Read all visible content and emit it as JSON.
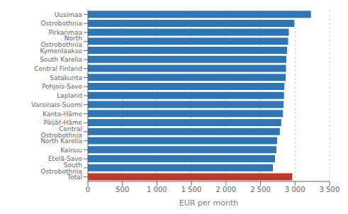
{
  "chart_data": {
    "type": "bar",
    "orientation": "horizontal",
    "categories": [
      "Uusimaa",
      "Ostrobothnia",
      "Pirkanmaa",
      "North Ostrobothnia",
      "Kymenlaakso",
      "South Karelia",
      "Central Finland",
      "Satakunta",
      "Pohjois-Savo",
      "Lapland",
      "Varsinais-Suomi",
      "Kanta-Häme",
      "Päijät-Häme",
      "Central Ostrobothnia",
      "North Karelia",
      "Kainuu",
      "Etelä-Savo",
      "South Ostrobothnia",
      "Total"
    ],
    "values": [
      3230,
      2990,
      2910,
      2900,
      2885,
      2875,
      2870,
      2865,
      2845,
      2840,
      2835,
      2825,
      2800,
      2780,
      2740,
      2730,
      2710,
      2680,
      2960
    ],
    "colors": [
      "#2e75b6",
      "#2e75b6",
      "#2e75b6",
      "#2e75b6",
      "#2e75b6",
      "#2e75b6",
      "#2e75b6",
      "#2e75b6",
      "#2e75b6",
      "#2e75b6",
      "#2e75b6",
      "#2e75b6",
      "#2e75b6",
      "#2e75b6",
      "#2e75b6",
      "#2e75b6",
      "#2e75b6",
      "#2e75b6",
      "#c0392b"
    ],
    "xlabel": "EUR per month",
    "xlim": [
      0,
      3500
    ],
    "xticks": [
      0,
      500,
      {
        "value": 1000,
        "label": "1 000"
      },
      {
        "value": 1500,
        "label": "1 500"
      },
      {
        "value": 2000,
        "label": "2 000"
      },
      {
        "value": 2500,
        "label": "2 500"
      },
      {
        "value": 3000,
        "label": "3 000"
      },
      {
        "value": 3500,
        "label": "3 500"
      }
    ],
    "grid": true
  }
}
